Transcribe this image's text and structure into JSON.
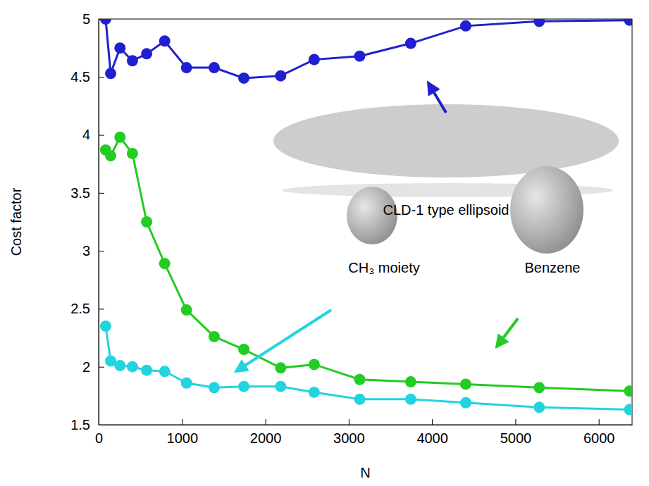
{
  "chart_data": {
    "type": "line",
    "x_label": "N",
    "y_label": "Cost factor",
    "x": [
      84,
      144,
      256,
      405,
      576,
      792,
      1054,
      1386,
      1742,
      2184,
      2586,
      3132,
      3744,
      4404,
      5286,
      6370
    ],
    "series": [
      {
        "color": "#2020d0",
        "values": [
          5.0,
          4.53,
          4.75,
          4.64,
          4.7,
          4.81,
          4.58,
          4.58,
          4.49,
          4.51,
          4.65,
          4.68,
          4.79,
          4.94,
          4.98,
          4.99
        ]
      },
      {
        "color": "#22cc22",
        "values": [
          3.87,
          3.82,
          3.98,
          3.84,
          3.25,
          2.89,
          2.49,
          2.26,
          2.15,
          1.99,
          2.02,
          1.89,
          1.87,
          1.85,
          1.82,
          1.79
        ]
      },
      {
        "color": "#22d4e0",
        "values": [
          2.35,
          2.05,
          2.01,
          2.0,
          1.97,
          1.96,
          1.86,
          1.82,
          1.83,
          1.83,
          1.78,
          1.72,
          1.72,
          1.69,
          1.65,
          1.63
        ]
      }
    ],
    "marker": "circle",
    "annotations": [
      "CLD-1 type ellipsoid",
      "CH₃ moiety",
      "Benzene"
    ],
    "xlim": [
      0,
      6400
    ],
    "xticks": [
      0,
      1000,
      2000,
      3000,
      4000,
      5000,
      6000
    ],
    "ylim": [
      1.5,
      5
    ],
    "yticks": [
      1.5,
      2,
      2.5,
      3,
      3.5,
      4,
      4.5,
      5
    ],
    "grid": false
  }
}
